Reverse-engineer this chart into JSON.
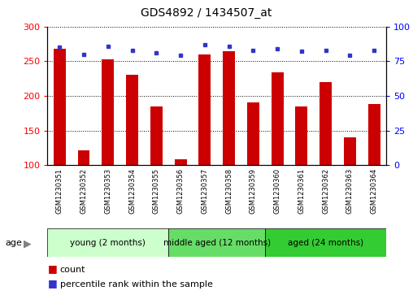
{
  "title": "GDS4892 / 1434507_at",
  "samples": [
    "GSM1230351",
    "GSM1230352",
    "GSM1230353",
    "GSM1230354",
    "GSM1230355",
    "GSM1230356",
    "GSM1230357",
    "GSM1230358",
    "GSM1230359",
    "GSM1230360",
    "GSM1230361",
    "GSM1230362",
    "GSM1230363",
    "GSM1230364"
  ],
  "counts": [
    268,
    122,
    253,
    231,
    185,
    108,
    260,
    265,
    191,
    234,
    185,
    220,
    140,
    188
  ],
  "percentiles": [
    85,
    80,
    86,
    83,
    81,
    79,
    87,
    86,
    83,
    84,
    82,
    83,
    79,
    83
  ],
  "ylim_left": [
    100,
    300
  ],
  "ylim_right": [
    0,
    100
  ],
  "yticks_left": [
    100,
    150,
    200,
    250,
    300
  ],
  "yticks_right": [
    0,
    25,
    50,
    75,
    100
  ],
  "bar_color": "#cc0000",
  "dot_color": "#3333cc",
  "groups": [
    {
      "label": "young (2 months)",
      "start": 0,
      "end": 5,
      "color": "#ccffcc"
    },
    {
      "label": "middle aged (12 months)",
      "start": 5,
      "end": 9,
      "color": "#66dd66"
    },
    {
      "label": "aged (24 months)",
      "start": 9,
      "end": 14,
      "color": "#33cc33"
    }
  ],
  "group_header": "age",
  "legend_count_label": "count",
  "legend_percentile_label": "percentile rank within the sample",
  "sample_bg_color": "#cccccc",
  "sample_sep_color": "#ffffff",
  "bar_width": 0.5
}
